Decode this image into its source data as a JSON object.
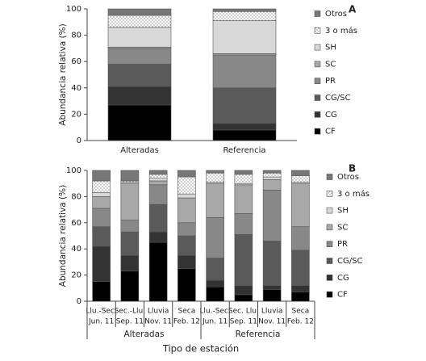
{
  "chart_data": [
    {
      "type": "stacked_bar",
      "panel_label": "A",
      "y_label": "Abundancia relativa (%)",
      "categories": [
        "Alteradas",
        "Referencia"
      ],
      "ylim": [
        0,
        100
      ],
      "yticks": [
        0,
        20,
        40,
        60,
        80,
        100
      ],
      "series": [
        {
          "name": "CF",
          "color": "#000000",
          "values": [
            27,
            8
          ]
        },
        {
          "name": "CG",
          "color": "#333333",
          "values": [
            14,
            5
          ]
        },
        {
          "name": "CG/SC",
          "color": "#5a5a5a",
          "values": [
            17,
            27
          ]
        },
        {
          "name": "PR",
          "color": "#888888",
          "values": [
            12,
            25
          ]
        },
        {
          "name": "SC",
          "color": "#a8a8a8",
          "values": [
            1,
            1
          ]
        },
        {
          "name": "SH",
          "color": "#d8d8d8",
          "values": [
            15,
            25
          ]
        },
        {
          "name": "3 o más",
          "color": "#ffffff",
          "pattern": "dots",
          "values": [
            9,
            7
          ]
        },
        {
          "name": "Otros",
          "color": "#777777",
          "values": [
            5,
            2
          ]
        }
      ]
    },
    {
      "type": "stacked_bar",
      "panel_label": "B",
      "y_label": "Abundancia relativa (%)",
      "x_label": "Tipo de estación",
      "groups": [
        {
          "name": "Alteradas",
          "categories": [
            [
              "Llu.-Sec.",
              "Jun. 11"
            ],
            [
              "Sec.-Llu.",
              "Sep. 11"
            ],
            [
              "Lluvia",
              "Nov. 11"
            ],
            [
              "Seca",
              "Feb. 12"
            ]
          ]
        },
        {
          "name": "Referencia",
          "categories": [
            [
              "Llu.-Sec.",
              "Jun. 11"
            ],
            [
              "Sec. Llu.",
              "Sep. 11"
            ],
            [
              "Lluvia",
              "Nov. 11"
            ],
            [
              "Seca",
              "Feb. 12"
            ]
          ]
        }
      ],
      "ylim": [
        0,
        100
      ],
      "yticks": [
        0,
        20,
        40,
        60,
        80,
        100
      ],
      "series": [
        {
          "name": "CF",
          "color": "#000000",
          "values": [
            15,
            23,
            45,
            25,
            11,
            5,
            9,
            7
          ]
        },
        {
          "name": "CG",
          "color": "#333333",
          "values": [
            27,
            12,
            8,
            10,
            5,
            7,
            3,
            5
          ]
        },
        {
          "name": "CG/SC",
          "color": "#5a5a5a",
          "values": [
            15,
            18,
            21,
            15,
            17,
            39,
            34,
            27
          ]
        },
        {
          "name": "PR",
          "color": "#888888",
          "values": [
            14,
            9,
            15,
            10,
            31,
            16,
            39,
            18
          ]
        },
        {
          "name": "SC",
          "color": "#a8a8a8",
          "values": [
            9,
            28,
            3,
            19,
            26,
            22,
            8,
            33
          ]
        },
        {
          "name": "SH",
          "color": "#d8d8d8",
          "values": [
            3,
            1,
            2,
            3,
            1,
            1,
            2,
            1
          ]
        },
        {
          "name": "3 o más",
          "color": "#ffffff",
          "pattern": "dots",
          "values": [
            9,
            1,
            3,
            13,
            7,
            7,
            3,
            5
          ]
        },
        {
          "name": "Otros",
          "color": "#777777",
          "values": [
            8,
            8,
            3,
            5,
            2,
            3,
            2,
            4
          ]
        }
      ]
    }
  ]
}
